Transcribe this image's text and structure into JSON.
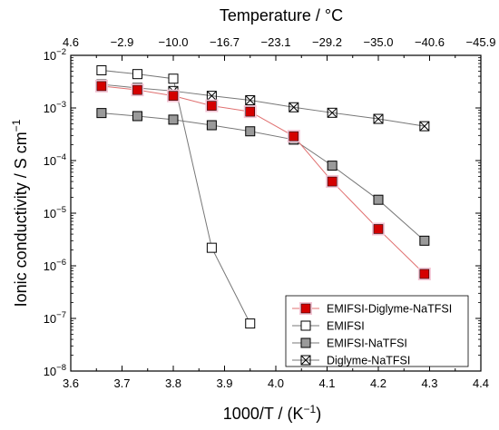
{
  "chart_data": {
    "type": "scatter",
    "x_axis": {
      "label_base": "1000/T / (K",
      "label_exp": "−1",
      "label_close": ")",
      "range": [
        3.6,
        4.4
      ],
      "ticks": [
        3.6,
        3.7,
        3.8,
        3.9,
        4.0,
        4.1,
        4.2,
        4.3,
        4.4
      ],
      "tick_labels": [
        "3.6",
        "3.7",
        "3.8",
        "3.9",
        "4.0",
        "4.1",
        "4.2",
        "4.3",
        "4.4"
      ]
    },
    "x2_axis": {
      "label": "Temperature / °C",
      "tick_positions": [
        3.6,
        3.7,
        3.8,
        3.9,
        4.0,
        4.1,
        4.2,
        4.3,
        4.4
      ],
      "tick_labels": [
        "4.6",
        "−2.9",
        "−10.0",
        "−16.7",
        "−23.1",
        "−29.2",
        "−35.0",
        "−40.6",
        "−45.9"
      ]
    },
    "y_axis": {
      "label_base": "Ionic conductivity / S cm",
      "label_exp": "−1",
      "scale": "log",
      "range": [
        1e-08,
        0.01
      ],
      "ticks": [
        -8,
        -7,
        -6,
        -5,
        -4,
        -3,
        -2
      ],
      "tick_label_base": "10",
      "tick_label_exps": [
        "−8",
        "−7",
        "−6",
        "−5",
        "−4",
        "−3",
        "−2"
      ]
    },
    "legend_position": "bottom-right",
    "series": [
      {
        "name": "EMIFSI-Diglyme-NaTFSI",
        "marker": "square-filled",
        "color": "#d40000",
        "line_color": "#e07070",
        "x": [
          3.66,
          3.73,
          3.8,
          3.875,
          3.95,
          4.035,
          4.11,
          4.2,
          4.29
        ],
        "y": [
          0.0026,
          0.0022,
          0.0017,
          0.0011,
          0.00085,
          0.00029,
          4e-05,
          5e-06,
          7e-07
        ]
      },
      {
        "name": "EMIFSI",
        "marker": "square-open",
        "color": "#000000",
        "line_color": "#777777",
        "x": [
          3.66,
          3.73,
          3.8,
          3.875,
          3.95
        ],
        "y": [
          0.0052,
          0.0044,
          0.0036,
          2.2e-06,
          8e-08
        ]
      },
      {
        "name": "EMIFSI-NaTFSI",
        "marker": "square-gray",
        "color": "#9a9a9a",
        "line_color": "#777777",
        "x": [
          3.66,
          3.73,
          3.8,
          3.875,
          3.95,
          4.035,
          4.11,
          4.2,
          4.29
        ],
        "y": [
          0.0008,
          0.0007,
          0.0006,
          0.00047,
          0.00036,
          0.00025,
          8e-05,
          1.8e-05,
          3e-06
        ]
      },
      {
        "name": "Diglyme-NaTFSI",
        "marker": "crossed-box",
        "color": "#000000",
        "line_color": "#777777",
        "x": [
          3.66,
          3.73,
          3.8,
          3.875,
          3.95,
          4.035,
          4.11,
          4.2,
          4.29
        ],
        "y": [
          0.0028,
          0.0024,
          0.0021,
          0.0017,
          0.0014,
          0.00103,
          0.00081,
          0.00062,
          0.00045
        ]
      }
    ]
  }
}
